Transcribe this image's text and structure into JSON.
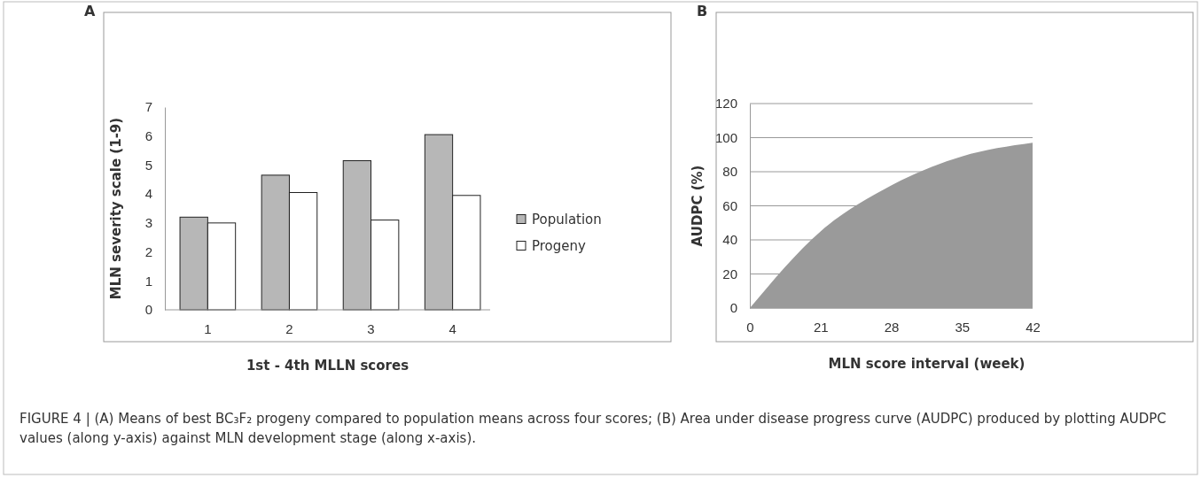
{
  "chart_data": [
    {
      "type": "bar",
      "title": "A",
      "xlabel": "1st - 4th MLLN scores",
      "ylabel": "MLN severity scale (1-9)",
      "categories": [
        "1",
        "2",
        "3",
        "4"
      ],
      "series": [
        {
          "name": "Population",
          "color": "#b7b7b7",
          "values": [
            3.2,
            4.65,
            5.15,
            6.05
          ]
        },
        {
          "name": "Progeny",
          "color": "#ffffff",
          "values": [
            3.0,
            4.05,
            3.1,
            3.95
          ]
        }
      ],
      "ylim": [
        0,
        7
      ],
      "yticks": [
        0,
        1,
        2,
        3,
        4,
        5,
        6,
        7
      ],
      "grid": false,
      "legend": "right"
    },
    {
      "type": "area",
      "title": "B",
      "xlabel": "MLN score interval (week)",
      "ylabel": "AUDPC (%)",
      "categories": [
        "0",
        "21",
        "28",
        "35",
        "42"
      ],
      "series": [
        {
          "color": "#9a9a9a",
          "values": [
            0,
            45,
            72,
            89,
            97
          ]
        }
      ],
      "ylim": [
        0,
        120
      ],
      "yticks": [
        0,
        20,
        40,
        60,
        80,
        100,
        120
      ],
      "grid": "y",
      "annotations": [
        "FIGURE 4 | (A) Means of best BC₃F₂ progeny compared to population means across four scores; (B) Area under disease progress curve (AUDPC) produced by plotting AUDPC values (along y-axis) against MLN development stage (along x-axis)."
      ]
    }
  ]
}
